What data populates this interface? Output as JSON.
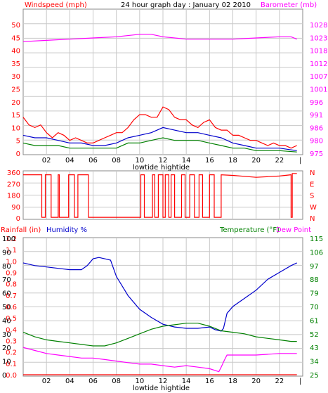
{
  "chart_data": [
    {
      "type": "line",
      "title": "24 hour graph day : January 02 2010",
      "left_label": "Windspeed (mph)",
      "right_label": "Barometer (mb)",
      "left_ticks": [
        "0",
        "5",
        "10",
        "15",
        "20",
        "25",
        "30",
        "35",
        "40",
        "45",
        "50"
      ],
      "right_ticks": [
        "975",
        "980",
        "986",
        "991",
        "996",
        "1001",
        "1007",
        "1012",
        "1018",
        "1023",
        "1028"
      ],
      "x_ticks": [
        "02",
        "04",
        "06",
        "08",
        "10",
        "12",
        "14",
        "16",
        "18",
        "20",
        "22"
      ],
      "tide_labels": [
        "lowtide",
        "hightide"
      ],
      "ylim": [
        0,
        50
      ],
      "ylim_right": [
        975,
        1028
      ],
      "series": [
        {
          "id": "gust",
          "color": "#ff0000",
          "x": [
            0,
            0.5,
            1,
            1.5,
            2,
            2.5,
            3,
            3.5,
            4,
            4.5,
            5,
            5.5,
            6,
            6.5,
            7,
            7.5,
            8,
            8.5,
            9,
            9.5,
            10,
            10.5,
            11,
            11.5,
            12,
            12.5,
            13,
            13.5,
            14,
            14.5,
            15,
            15.5,
            16,
            16.5,
            17,
            17.5,
            18,
            18.5,
            19,
            19.5,
            20,
            20.5,
            21,
            21.5,
            22,
            22.5,
            23,
            23.5
          ],
          "values": [
            14,
            11,
            10,
            11,
            8,
            6,
            8,
            7,
            5,
            6,
            5,
            4,
            4,
            5,
            6,
            7,
            8,
            8,
            10,
            13,
            15,
            15,
            14,
            14,
            18,
            17,
            14,
            13,
            13,
            11,
            10,
            12,
            13,
            10,
            9,
            9,
            7,
            7,
            6,
            5,
            5,
            4,
            3,
            4,
            3,
            3,
            2,
            3
          ]
        },
        {
          "id": "wind",
          "color": "#0000cc",
          "x": [
            0,
            1,
            2,
            3,
            4,
            5,
            6,
            7,
            8,
            9,
            10,
            11,
            12,
            13,
            14,
            15,
            16,
            17,
            18,
            19,
            20,
            21,
            22,
            23.5
          ],
          "values": [
            7,
            6,
            6,
            5,
            4,
            4,
            3,
            3,
            4,
            6,
            7,
            8,
            10,
            9,
            8,
            8,
            7,
            6,
            4,
            3,
            2,
            2,
            2,
            1
          ]
        },
        {
          "id": "avg",
          "color": "#008000",
          "x": [
            0,
            1,
            2,
            3,
            4,
            5,
            6,
            7,
            8,
            9,
            10,
            11,
            12,
            13,
            14,
            15,
            16,
            17,
            18,
            19,
            20,
            21,
            22,
            23.5
          ],
          "values": [
            4,
            3,
            3,
            3,
            2,
            2,
            2,
            2,
            2,
            4,
            4,
            5,
            6,
            5,
            5,
            5,
            4,
            3,
            2,
            2,
            1,
            1,
            1,
            0.5
          ]
        },
        {
          "id": "barometer",
          "axis": "right",
          "color": "#ff00ff",
          "x": [
            0,
            2,
            4,
            6,
            8,
            10,
            11,
            12,
            14,
            16,
            18,
            20,
            22,
            23,
            23.5
          ],
          "values": [
            1021,
            1021.5,
            1022,
            1022.5,
            1023,
            1024,
            1024,
            1023,
            1022,
            1022,
            1022,
            1022.5,
            1023,
            1023,
            1022
          ]
        }
      ]
    },
    {
      "type": "line",
      "left_ticks": [
        "0",
        "90",
        "180",
        "270",
        "360"
      ],
      "right_ticks": [
        "N",
        "W",
        "S",
        "E",
        "N"
      ],
      "x_ticks": [],
      "ylim": [
        0,
        360
      ],
      "series": [
        {
          "id": "direction",
          "color": "#ff0000",
          "x": [
            0,
            1.6,
            1.6,
            1.9,
            1.9,
            2.4,
            2.4,
            3.0,
            3.0,
            3.1,
            3.1,
            3.9,
            3.9,
            4.4,
            4.4,
            4.7,
            4.7,
            5.6,
            5.6,
            10.1,
            10.1,
            10.4,
            10.4,
            11.1,
            11.1,
            11.3,
            11.3,
            11.6,
            11.6,
            12.0,
            12.0,
            12.2,
            12.2,
            12.5,
            12.5,
            12.7,
            12.7,
            13.0,
            13.0,
            13.6,
            13.6,
            13.9,
            13.9,
            14.3,
            14.3,
            14.7,
            14.7,
            15.1,
            15.1,
            15.4,
            15.4,
            16.0,
            16.0,
            16.4,
            16.4,
            17.0,
            17.0,
            18.0,
            20.0,
            22.0,
            23.0,
            23.0,
            23.1,
            23.1,
            23.5
          ],
          "values": [
            340,
            340,
            5,
            5,
            340,
            340,
            5,
            5,
            340,
            340,
            5,
            5,
            340,
            340,
            5,
            5,
            340,
            340,
            5,
            5,
            340,
            340,
            5,
            5,
            340,
            340,
            5,
            5,
            340,
            340,
            5,
            5,
            340,
            340,
            5,
            5,
            340,
            340,
            5,
            5,
            340,
            340,
            5,
            5,
            340,
            340,
            5,
            5,
            340,
            340,
            5,
            5,
            340,
            340,
            5,
            5,
            340,
            335,
            320,
            330,
            340,
            5,
            5,
            350,
            350
          ]
        }
      ]
    },
    {
      "type": "line",
      "left_label": "Rainfall (in)",
      "left2_label": "Humidity %",
      "right_label": "Temperature (°F)",
      "right2_label": "Dew Point",
      "rain_ticks": [
        "0.0",
        "0.1",
        "0.2",
        "0.3",
        "0.4",
        "0.5",
        "0.6",
        "0.7",
        "0.8",
        "0.9",
        "1.0",
        "1.1",
        "1.2"
      ],
      "humidity_ticks": [
        "0",
        "10",
        "20",
        "30",
        "40",
        "50",
        "60",
        "70",
        "80",
        "90",
        "100"
      ],
      "right_ticks": [
        "25",
        "34",
        "43",
        "52",
        "61",
        "70",
        "79",
        "88",
        "97",
        "106",
        "115"
      ],
      "x_ticks": [
        "02",
        "04",
        "06",
        "08",
        "10",
        "12",
        "14",
        "16",
        "18",
        "20",
        "22"
      ],
      "tide_labels": [
        "lowtide",
        "hightide"
      ],
      "ylim_humidity": [
        0,
        100
      ],
      "ylim_temp": [
        25,
        115
      ],
      "series": [
        {
          "id": "humidity",
          "axis": "left2",
          "color": "#0000cc",
          "x": [
            0,
            1,
            2,
            3,
            4,
            5,
            5.5,
            6,
            6.5,
            7,
            7.5,
            8,
            9,
            10,
            11,
            12,
            13,
            14,
            15,
            16,
            16.5,
            17,
            17.2,
            17.5,
            18,
            19,
            20,
            21,
            22,
            23,
            23.5
          ],
          "values": [
            82,
            80,
            79,
            78,
            77,
            77,
            80,
            85,
            86,
            85,
            84,
            72,
            58,
            48,
            42,
            37,
            35,
            34,
            34,
            35,
            33,
            32,
            34,
            45,
            50,
            56,
            62,
            70,
            75,
            80,
            82
          ]
        },
        {
          "id": "temperature",
          "axis": "right",
          "color": "#008000",
          "x": [
            0,
            1,
            2,
            3,
            4,
            5,
            6,
            7,
            8,
            9,
            10,
            11,
            12,
            13,
            14,
            15,
            16,
            17,
            18,
            19,
            20,
            21,
            22,
            23,
            23.5
          ],
          "values": [
            53,
            50,
            48,
            47,
            46,
            45,
            44,
            44,
            46,
            49,
            52,
            55,
            57,
            58,
            59,
            59,
            57,
            54,
            53,
            52,
            50,
            49,
            48,
            47,
            47
          ]
        },
        {
          "id": "dewpoint",
          "axis": "right",
          "color": "#ff00ff",
          "x": [
            0,
            1,
            2,
            3,
            4,
            5,
            6,
            7,
            8,
            9,
            10,
            11,
            12,
            13,
            14,
            15,
            16,
            16.8,
            17,
            17.3,
            17.5,
            18,
            20,
            22,
            23.5
          ],
          "values": [
            43,
            41,
            39,
            38,
            37,
            36,
            36,
            35,
            34,
            33,
            32,
            32,
            31,
            30,
            31,
            30,
            29,
            27,
            30,
            35,
            38,
            38,
            38,
            39,
            39
          ]
        },
        {
          "id": "rainfall",
          "axis": "left",
          "color": "#ff0000",
          "x": [
            0,
            23.5
          ],
          "values": [
            0,
            0
          ]
        }
      ]
    }
  ]
}
